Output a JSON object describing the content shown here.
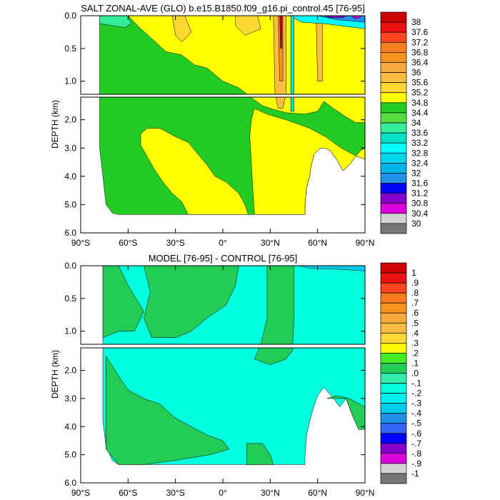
{
  "chart_data": [
    {
      "type": "contour",
      "title": "SALT ZONAL-AVE (GLO) b.e15.B1850.f09_g16.pi_control.45 [76-95]",
      "ylabel": "DEPTH (km)",
      "x_ticks": [
        "90°S",
        "60°S",
        "30°S",
        "0°",
        "30°N",
        "60°N",
        "90°N"
      ],
      "y_ticks_upper": [
        "0.0",
        "0.5",
        "1.0"
      ],
      "y_ticks_lower": [
        "2.0",
        "3.0",
        "4.0",
        "5.0",
        "6.0"
      ],
      "xlim": [
        -90,
        90
      ],
      "ylim_km": [
        0,
        6
      ],
      "colorbar_labels": [
        "38",
        "37.6",
        "37.2",
        "36.8",
        "36.4",
        "36",
        "35.6",
        "35.2",
        "34.8",
        "34.4",
        "34",
        "33.6",
        "33.2",
        "32.8",
        "32.4",
        "32",
        "31.6",
        "31.2",
        "30.8",
        "30.4",
        "30"
      ],
      "colorbar_colors": [
        "#cc0000",
        "#ee1111",
        "#ff4422",
        "#f77d1e",
        "#f7941d",
        "#f9a93e",
        "#fbbe42",
        "#fdd835",
        "#ffff00",
        "#22cc22",
        "#55dd44",
        "#33ee99",
        "#00e0c8",
        "#00ffff",
        "#00d8f0",
        "#00b4e6",
        "#2090e8",
        "#0000ff",
        "#8800cc",
        "#dd00dd",
        "#d3d3d3",
        "#777777"
      ]
    },
    {
      "type": "contour",
      "title": "MODEL [76-95] - CONTROL [76-95]",
      "ylabel": "DEPTH (km)",
      "x_ticks": [
        "90°S",
        "60°S",
        "30°S",
        "0°",
        "30°N",
        "60°N",
        "90°N"
      ],
      "y_ticks_upper": [
        "0.0",
        "0.5",
        "1.0"
      ],
      "y_ticks_lower": [
        "2.0",
        "3.0",
        "4.0",
        "5.0",
        "6.0"
      ],
      "xlim": [
        -90,
        90
      ],
      "ylim_km": [
        0,
        6
      ],
      "colorbar_labels": [
        "1",
        ".9",
        ".8",
        ".7",
        ".6",
        ".5",
        ".4",
        ".3",
        ".2",
        ".1",
        ".0",
        "-.1",
        "-.2",
        "-.3",
        "-.4",
        "-.5",
        "-.6",
        "-.7",
        "-.8",
        "-.9",
        "-1"
      ],
      "colorbar_colors": [
        "#cc0000",
        "#ee1111",
        "#ff4422",
        "#f77d1e",
        "#f7941d",
        "#f9a93e",
        "#fbbe42",
        "#fdd835",
        "#ffff00",
        "#44ee22",
        "#22cc55",
        "#33eeaa",
        "#00ffdd",
        "#00f0f0",
        "#00ccee",
        "#2090e8",
        "#3366ff",
        "#0000ff",
        "#8800cc",
        "#dd00dd",
        "#d3d3d3",
        "#777777"
      ]
    }
  ]
}
